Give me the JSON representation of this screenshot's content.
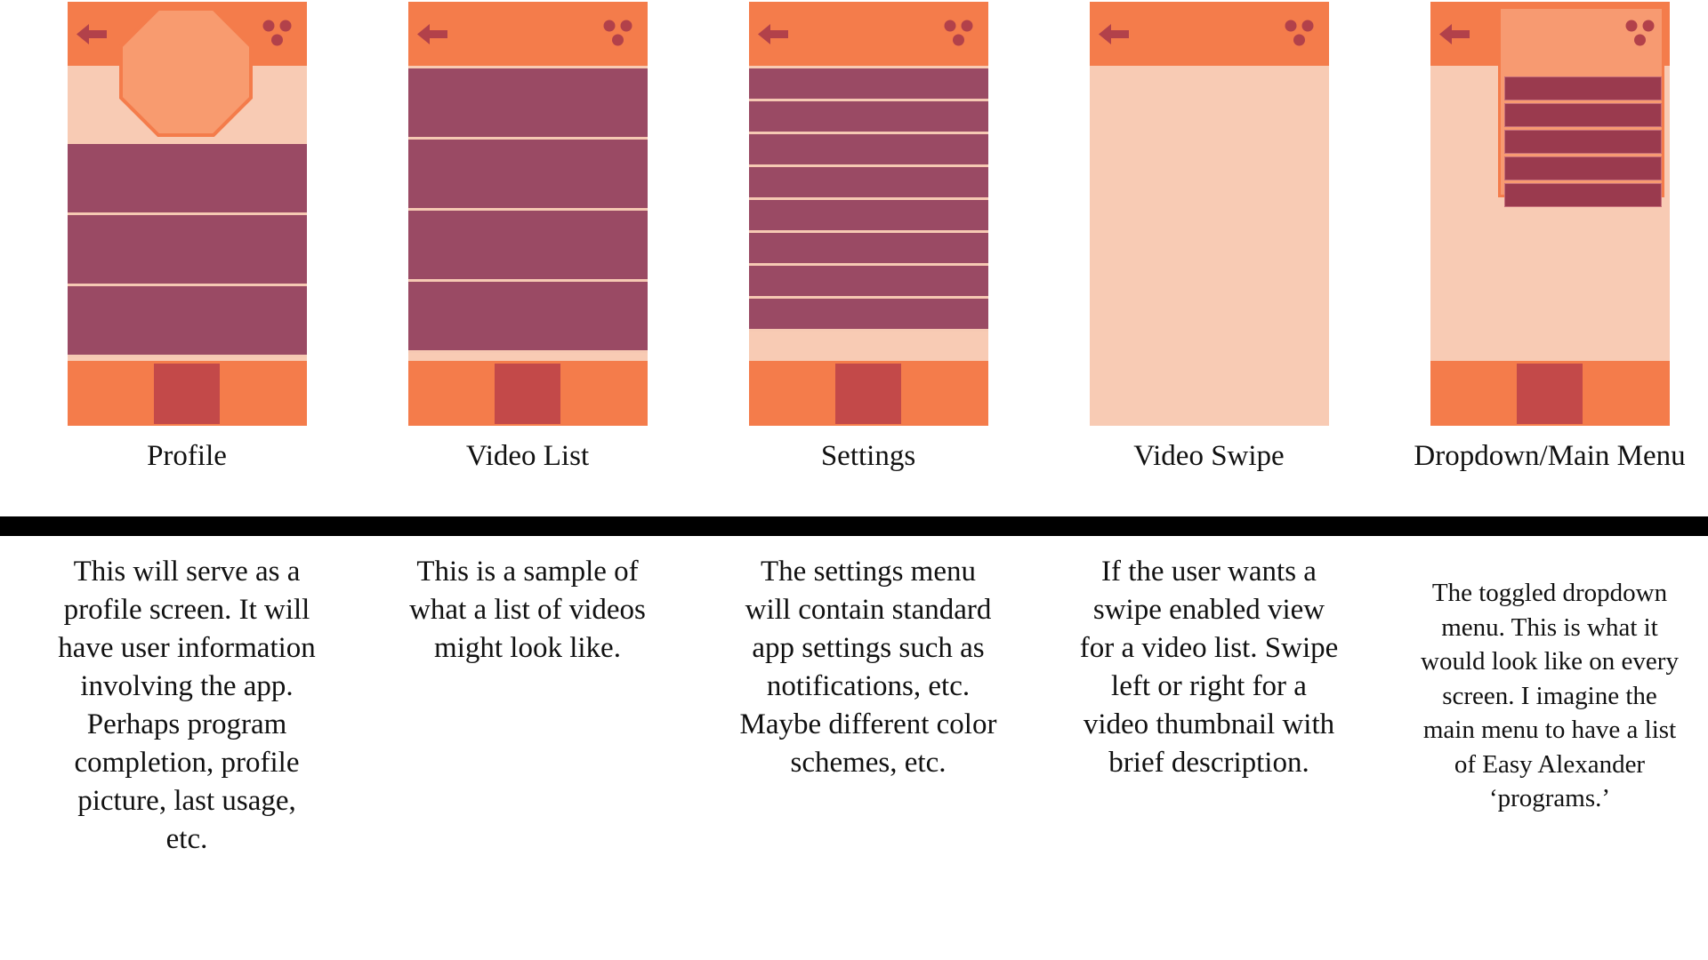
{
  "colors": {
    "bar": "#f47c4b",
    "screen_bg": "#f8cbb4",
    "row": "#9a4a64",
    "home_button": "#c34949",
    "icon": "#b2414a",
    "avatar": "#f89b6f",
    "divider": "#000000"
  },
  "icons": {
    "back": "back-arrow-icon",
    "menu": "three-dot-menu-icon"
  },
  "screens": [
    {
      "title": "Profile",
      "description": "This will serve as a profile screen. It will have user information involving the app. Perhaps program completion, profile picture, last usage, etc."
    },
    {
      "title": "Video List",
      "description": "This is a sample of what a list of videos might look like."
    },
    {
      "title": "Settings",
      "description": "The settings menu will contain standard app settings such as notifications, etc. Maybe different color schemes, etc."
    },
    {
      "title": "Video Swipe",
      "description": "If the user wants a swipe enabled view for a video list. Swipe left or right for a video thumbnail with brief description."
    },
    {
      "title": "Dropdown/Main Menu",
      "description": "The toggled dropdown menu. This is what it would look like on every screen. I imagine the main menu to have a list of Easy Alexander ‘programs.’"
    }
  ]
}
